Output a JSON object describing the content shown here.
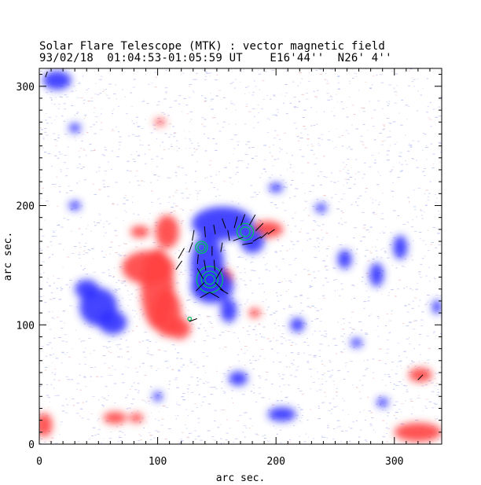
{
  "chart_data": {
    "type": "heatmap",
    "title": "Solar Flare Telescope (MTK) : vector magnetic field",
    "subtitle": "93/02/18  01:04:53-01:05:59 UT    E16'44''  N26' 4''",
    "xlabel": "arc sec.",
    "ylabel": "arc sec.",
    "xlim": [
      0,
      340
    ],
    "ylim": [
      0,
      315
    ],
    "xticks": [
      0,
      100,
      200,
      300
    ],
    "yticks": [
      0,
      100,
      200,
      300
    ],
    "colors": {
      "positive": "#ff4040",
      "negative": "#3030ff",
      "contour": "#00c060",
      "vector": "#000000"
    },
    "positive_regions": [
      {
        "x": 100,
        "y": 130,
        "rx": 14,
        "ry": 34
      },
      {
        "x": 92,
        "y": 148,
        "rx": 22,
        "ry": 14
      },
      {
        "x": 108,
        "y": 110,
        "rx": 12,
        "ry": 20
      },
      {
        "x": 118,
        "y": 97,
        "rx": 10,
        "ry": 9
      },
      {
        "x": 108,
        "y": 178,
        "rx": 10,
        "ry": 14
      },
      {
        "x": 85,
        "y": 178,
        "rx": 8,
        "ry": 5
      },
      {
        "x": 192,
        "y": 180,
        "rx": 14,
        "ry": 7
      },
      {
        "x": 155,
        "y": 140,
        "rx": 8,
        "ry": 7
      },
      {
        "x": 320,
        "y": 10,
        "rx": 20,
        "ry": 8
      },
      {
        "x": 322,
        "y": 58,
        "rx": 10,
        "ry": 6
      },
      {
        "x": 4,
        "y": 16,
        "rx": 7,
        "ry": 10
      },
      {
        "x": 64,
        "y": 22,
        "rx": 10,
        "ry": 5
      },
      {
        "x": 82,
        "y": 22,
        "rx": 6,
        "ry": 4
      },
      {
        "x": 102,
        "y": 270,
        "rx": 5,
        "ry": 3
      },
      {
        "x": 182,
        "y": 110,
        "rx": 5,
        "ry": 4
      }
    ],
    "negative_regions": [
      {
        "x": 155,
        "y": 185,
        "rx": 26,
        "ry": 14
      },
      {
        "x": 142,
        "y": 150,
        "rx": 14,
        "ry": 26
      },
      {
        "x": 146,
        "y": 132,
        "rx": 18,
        "ry": 14
      },
      {
        "x": 180,
        "y": 170,
        "rx": 10,
        "ry": 10
      },
      {
        "x": 160,
        "y": 112,
        "rx": 7,
        "ry": 10
      },
      {
        "x": 50,
        "y": 115,
        "rx": 16,
        "ry": 16
      },
      {
        "x": 62,
        "y": 102,
        "rx": 12,
        "ry": 10
      },
      {
        "x": 40,
        "y": 130,
        "rx": 10,
        "ry": 8
      },
      {
        "x": 15,
        "y": 305,
        "rx": 12,
        "ry": 8
      },
      {
        "x": 205,
        "y": 25,
        "rx": 12,
        "ry": 6
      },
      {
        "x": 168,
        "y": 55,
        "rx": 8,
        "ry": 6
      },
      {
        "x": 258,
        "y": 155,
        "rx": 6,
        "ry": 8
      },
      {
        "x": 285,
        "y": 142,
        "rx": 6,
        "ry": 10
      },
      {
        "x": 305,
        "y": 165,
        "rx": 6,
        "ry": 10
      },
      {
        "x": 218,
        "y": 100,
        "rx": 6,
        "ry": 6
      },
      {
        "x": 30,
        "y": 265,
        "rx": 5,
        "ry": 4
      },
      {
        "x": 30,
        "y": 200,
        "rx": 5,
        "ry": 4
      },
      {
        "x": 200,
        "y": 215,
        "rx": 6,
        "ry": 4
      },
      {
        "x": 238,
        "y": 198,
        "rx": 5,
        "ry": 4
      },
      {
        "x": 268,
        "y": 85,
        "rx": 5,
        "ry": 4
      },
      {
        "x": 290,
        "y": 35,
        "rx": 5,
        "ry": 4
      },
      {
        "x": 100,
        "y": 40,
        "rx": 4,
        "ry": 4
      },
      {
        "x": 336,
        "y": 115,
        "rx": 4,
        "ry": 6
      }
    ],
    "contours": [
      {
        "x": 174,
        "y": 178,
        "r": [
          4,
          7
        ]
      },
      {
        "x": 144,
        "y": 138,
        "r": [
          4,
          7,
          11
        ]
      },
      {
        "x": 137,
        "y": 165,
        "r": [
          3,
          5
        ]
      },
      {
        "x": 127,
        "y": 105,
        "r": [
          1.5
        ]
      }
    ],
    "vectors": [
      {
        "x": 120,
        "y": 160,
        "angle": 60,
        "len": 10
      },
      {
        "x": 118,
        "y": 150,
        "angle": 55,
        "len": 9
      },
      {
        "x": 130,
        "y": 175,
        "angle": 80,
        "len": 9
      },
      {
        "x": 128,
        "y": 165,
        "angle": 70,
        "len": 9
      },
      {
        "x": 140,
        "y": 178,
        "angle": 95,
        "len": 9
      },
      {
        "x": 148,
        "y": 180,
        "angle": 100,
        "len": 8
      },
      {
        "x": 156,
        "y": 185,
        "angle": 110,
        "len": 9
      },
      {
        "x": 160,
        "y": 175,
        "angle": 100,
        "len": 9
      },
      {
        "x": 166,
        "y": 186,
        "angle": 75,
        "len": 10
      },
      {
        "x": 172,
        "y": 188,
        "angle": 70,
        "len": 10
      },
      {
        "x": 180,
        "y": 188,
        "angle": 60,
        "len": 10
      },
      {
        "x": 186,
        "y": 182,
        "angle": 45,
        "len": 9
      },
      {
        "x": 168,
        "y": 172,
        "angle": 20,
        "len": 9
      },
      {
        "x": 176,
        "y": 168,
        "angle": 10,
        "len": 9
      },
      {
        "x": 184,
        "y": 172,
        "angle": 30,
        "len": 8
      },
      {
        "x": 190,
        "y": 175,
        "angle": 40,
        "len": 8
      },
      {
        "x": 196,
        "y": 178,
        "angle": 35,
        "len": 7
      },
      {
        "x": 154,
        "y": 165,
        "angle": 80,
        "len": 8
      },
      {
        "x": 146,
        "y": 162,
        "angle": 90,
        "len": 8
      },
      {
        "x": 134,
        "y": 155,
        "angle": 85,
        "len": 8
      },
      {
        "x": 140,
        "y": 150,
        "angle": 100,
        "len": 9
      },
      {
        "x": 148,
        "y": 150,
        "angle": 95,
        "len": 9
      },
      {
        "x": 136,
        "y": 143,
        "angle": 120,
        "len": 10
      },
      {
        "x": 152,
        "y": 143,
        "angle": 60,
        "len": 10
      },
      {
        "x": 136,
        "y": 132,
        "angle": 45,
        "len": 10
      },
      {
        "x": 152,
        "y": 132,
        "angle": 135,
        "len": 10
      },
      {
        "x": 140,
        "y": 125,
        "angle": 30,
        "len": 9
      },
      {
        "x": 148,
        "y": 125,
        "angle": 150,
        "len": 9
      },
      {
        "x": 156,
        "y": 128,
        "angle": 150,
        "len": 8
      },
      {
        "x": 130,
        "y": 104,
        "angle": 20,
        "len": 7
      },
      {
        "x": 322,
        "y": 56,
        "angle": 45,
        "len": 6
      },
      {
        "x": 6,
        "y": 310,
        "angle": 70,
        "len": 5
      }
    ],
    "noise_seed": 7
  }
}
